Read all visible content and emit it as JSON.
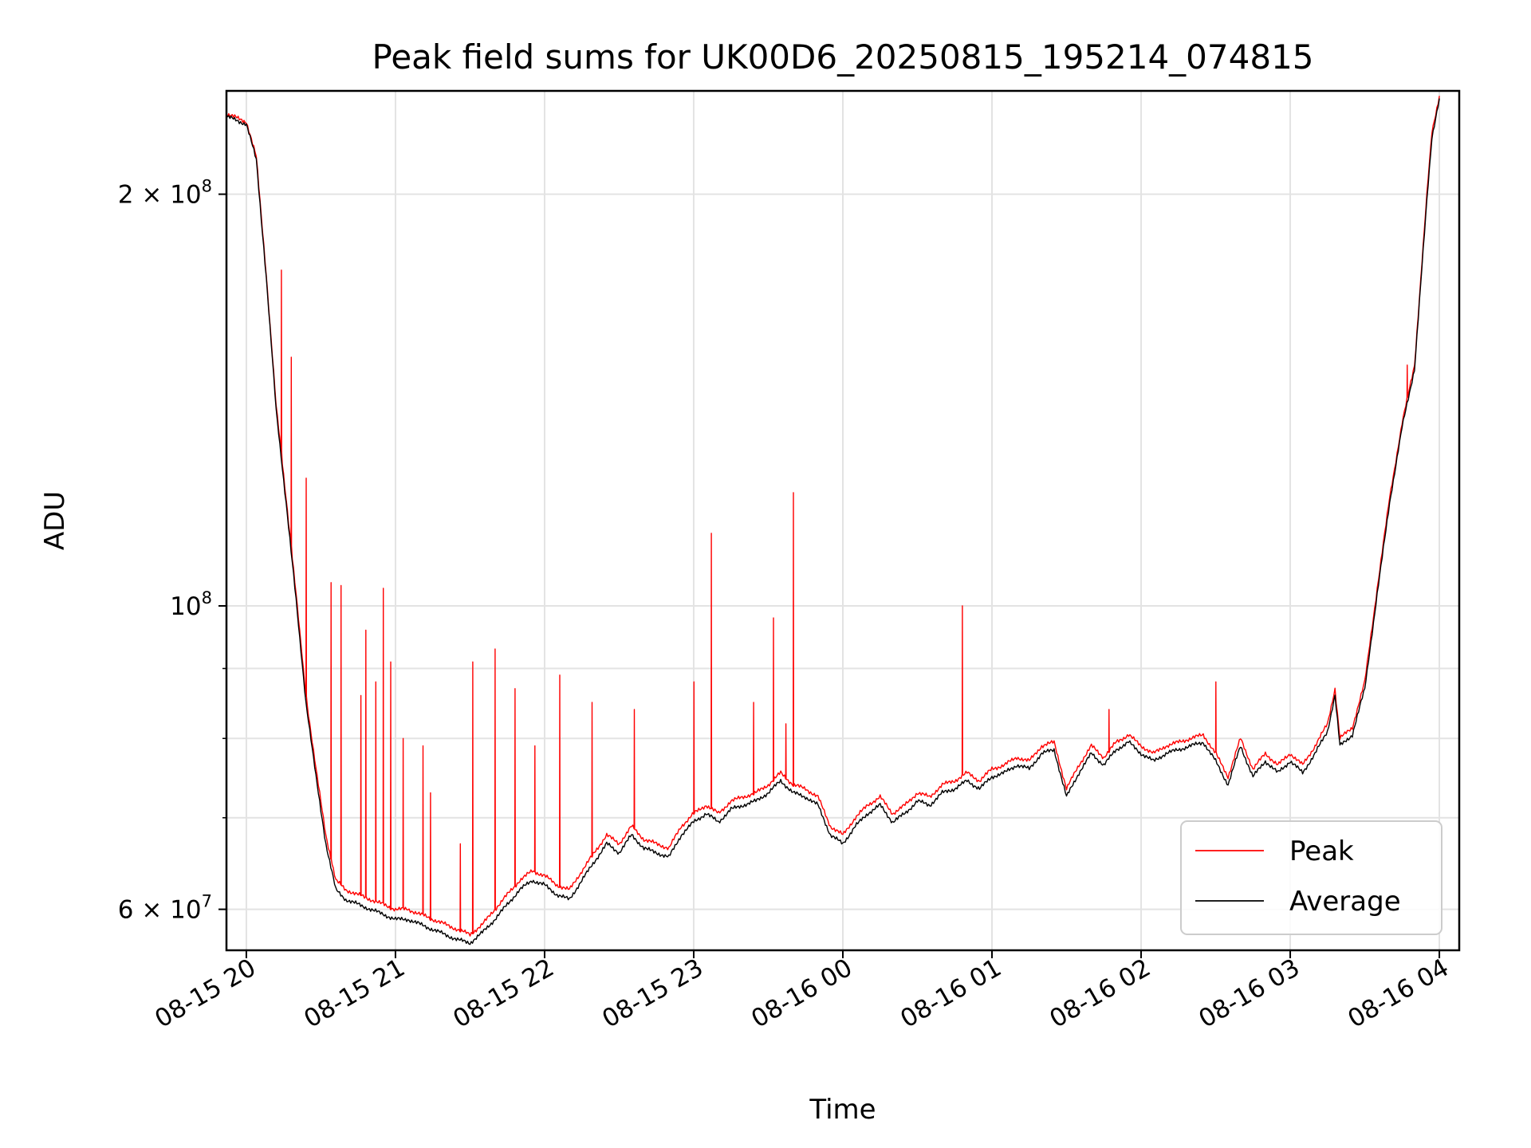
{
  "chart_data": {
    "type": "line",
    "title": "Peak field sums for UK00D6_20250815_195214_074815",
    "xlabel": "Time",
    "ylabel": "ADU",
    "y_scale": "log",
    "ylim": [
      56000000,
      238000000
    ],
    "xlim": [
      "2025-08-15 19:52",
      "2025-08-16 04:08"
    ],
    "grid": true,
    "legend_position": "lower right",
    "x_ticks": [
      "2025-08-15 20:00",
      "2025-08-15 21:00",
      "2025-08-15 22:00",
      "2025-08-15 23:00",
      "2025-08-16 00:00",
      "2025-08-16 01:00",
      "2025-08-16 02:00",
      "2025-08-16 03:00",
      "2025-08-16 04:00"
    ],
    "x_tick_labels": [
      "08-15 20",
      "08-15 21",
      "08-15 22",
      "08-15 23",
      "08-16 00",
      "08-16 01",
      "08-16 02",
      "08-16 03",
      "08-16 04"
    ],
    "y_major_ticks": [
      {
        "value": 60000000,
        "mantissa": "6",
        "base": "10",
        "exponent": "7"
      },
      {
        "value": 100000000,
        "mantissa": "",
        "base": "10",
        "exponent": "8"
      },
      {
        "value": 200000000,
        "mantissa": "2",
        "base": "10",
        "exponent": "8"
      }
    ],
    "y_minor_gridlines": [
      70000000,
      80000000,
      90000000
    ],
    "series": [
      {
        "name": "Peak",
        "color": "#ff0000",
        "values": [
          [
            "2025-08-15 19:52",
            229000000
          ],
          [
            "2025-08-15 20:00",
            226000000
          ],
          [
            "2025-08-15 20:04",
            213000000
          ],
          [
            "2025-08-15 20:08",
            175000000
          ],
          [
            "2025-08-15 20:12",
            140000000
          ],
          [
            "2025-08-15 20:16",
            120000000
          ],
          [
            "2025-08-15 20:20",
            102000000
          ],
          [
            "2025-08-15 20:24",
            86000000
          ],
          [
            "2025-08-15 20:28",
            76000000
          ],
          [
            "2025-08-15 20:32",
            68000000
          ],
          [
            "2025-08-15 20:36",
            63000000
          ],
          [
            "2025-08-15 20:40",
            62000000
          ],
          [
            "2025-08-15 20:45",
            61500000
          ],
          [
            "2025-08-15 20:50",
            61000000
          ],
          [
            "2025-08-15 20:55",
            60500000
          ],
          [
            "2025-08-15 21:00",
            60000000
          ],
          [
            "2025-08-15 21:05",
            60000000
          ],
          [
            "2025-08-15 21:10",
            59500000
          ],
          [
            "2025-08-15 21:15",
            59000000
          ],
          [
            "2025-08-15 21:20",
            58500000
          ],
          [
            "2025-08-15 21:25",
            58000000
          ],
          [
            "2025-08-15 21:30",
            57500000
          ],
          [
            "2025-08-15 21:35",
            58500000
          ],
          [
            "2025-08-15 21:40",
            60000000
          ],
          [
            "2025-08-15 21:45",
            61500000
          ],
          [
            "2025-08-15 21:50",
            63000000
          ],
          [
            "2025-08-15 21:55",
            64000000
          ],
          [
            "2025-08-15 22:00",
            63500000
          ],
          [
            "2025-08-15 22:05",
            62500000
          ],
          [
            "2025-08-15 22:10",
            62000000
          ],
          [
            "2025-08-15 22:15",
            64000000
          ],
          [
            "2025-08-15 22:20",
            66000000
          ],
          [
            "2025-08-15 22:25",
            68000000
          ],
          [
            "2025-08-15 22:30",
            67000000
          ],
          [
            "2025-08-15 22:35",
            69000000
          ],
          [
            "2025-08-15 22:40",
            67500000
          ],
          [
            "2025-08-15 22:45",
            67000000
          ],
          [
            "2025-08-15 22:50",
            66500000
          ],
          [
            "2025-08-15 22:55",
            69000000
          ],
          [
            "2025-08-15 23:00",
            70500000
          ],
          [
            "2025-08-15 23:05",
            71500000
          ],
          [
            "2025-08-15 23:10",
            70500000
          ],
          [
            "2025-08-15 23:15",
            72000000
          ],
          [
            "2025-08-15 23:20",
            72500000
          ],
          [
            "2025-08-15 23:25",
            73000000
          ],
          [
            "2025-08-15 23:30",
            74000000
          ],
          [
            "2025-08-15 23:35",
            75500000
          ],
          [
            "2025-08-15 23:40",
            74000000
          ],
          [
            "2025-08-15 23:45",
            73500000
          ],
          [
            "2025-08-15 23:50",
            72500000
          ],
          [
            "2025-08-15 23:55",
            69000000
          ],
          [
            "2025-08-16 00:00",
            68000000
          ],
          [
            "2025-08-16 00:05",
            70000000
          ],
          [
            "2025-08-16 00:10",
            71500000
          ],
          [
            "2025-08-16 00:15",
            72500000
          ],
          [
            "2025-08-16 00:20",
            70500000
          ],
          [
            "2025-08-16 00:25",
            71500000
          ],
          [
            "2025-08-16 00:30",
            73000000
          ],
          [
            "2025-08-16 00:35",
            72500000
          ],
          [
            "2025-08-16 00:40",
            74000000
          ],
          [
            "2025-08-16 00:45",
            74500000
          ],
          [
            "2025-08-16 00:50",
            75500000
          ],
          [
            "2025-08-16 00:55",
            74500000
          ],
          [
            "2025-08-16 01:00",
            76000000
          ],
          [
            "2025-08-16 01:05",
            76500000
          ],
          [
            "2025-08-16 01:10",
            77500000
          ],
          [
            "2025-08-16 01:15",
            77000000
          ],
          [
            "2025-08-16 01:20",
            79000000
          ],
          [
            "2025-08-16 01:25",
            79500000
          ],
          [
            "2025-08-16 01:30",
            73500000
          ],
          [
            "2025-08-16 01:35",
            76500000
          ],
          [
            "2025-08-16 01:40",
            79000000
          ],
          [
            "2025-08-16 01:45",
            77500000
          ],
          [
            "2025-08-16 01:50",
            79500000
          ],
          [
            "2025-08-16 01:55",
            80500000
          ],
          [
            "2025-08-16 02:00",
            79000000
          ],
          [
            "2025-08-16 02:05",
            78000000
          ],
          [
            "2025-08-16 02:10",
            79000000
          ],
          [
            "2025-08-16 02:15",
            79500000
          ],
          [
            "2025-08-16 02:20",
            80000000
          ],
          [
            "2025-08-16 02:25",
            80500000
          ],
          [
            "2025-08-16 02:30",
            78000000
          ],
          [
            "2025-08-16 02:35",
            75000000
          ],
          [
            "2025-08-16 02:40",
            80000000
          ],
          [
            "2025-08-16 02:45",
            76000000
          ],
          [
            "2025-08-16 02:50",
            78000000
          ],
          [
            "2025-08-16 02:55",
            76500000
          ],
          [
            "2025-08-16 03:00",
            78000000
          ],
          [
            "2025-08-16 03:05",
            76500000
          ],
          [
            "2025-08-16 03:10",
            79000000
          ],
          [
            "2025-08-16 03:15",
            82000000
          ],
          [
            "2025-08-16 03:18",
            87000000
          ],
          [
            "2025-08-16 03:20",
            80000000
          ],
          [
            "2025-08-16 03:25",
            81500000
          ],
          [
            "2025-08-16 03:30",
            88000000
          ],
          [
            "2025-08-16 03:35",
            103000000
          ],
          [
            "2025-08-16 03:40",
            120000000
          ],
          [
            "2025-08-16 03:45",
            136000000
          ],
          [
            "2025-08-16 03:50",
            150000000
          ],
          [
            "2025-08-16 03:55",
            200000000
          ],
          [
            "2025-08-16 03:57",
            222000000
          ],
          [
            "2025-08-16 04:00",
            236000000
          ]
        ],
        "spikes": [
          [
            "2025-08-15 20:14",
            176000000
          ],
          [
            "2025-08-15 20:18",
            152000000
          ],
          [
            "2025-08-15 20:24",
            124000000
          ],
          [
            "2025-08-15 20:34",
            104000000
          ],
          [
            "2025-08-15 20:38",
            103500000
          ],
          [
            "2025-08-15 20:46",
            86000000
          ],
          [
            "2025-08-15 20:48",
            96000000
          ],
          [
            "2025-08-15 20:52",
            88000000
          ],
          [
            "2025-08-15 20:55",
            103000000
          ],
          [
            "2025-08-15 20:58",
            91000000
          ],
          [
            "2025-08-15 21:03",
            80000000
          ],
          [
            "2025-08-15 21:11",
            79000000
          ],
          [
            "2025-08-15 21:14",
            73000000
          ],
          [
            "2025-08-15 21:26",
            67000000
          ],
          [
            "2025-08-15 21:31",
            91000000
          ],
          [
            "2025-08-15 21:40",
            93000000
          ],
          [
            "2025-08-15 21:48",
            87000000
          ],
          [
            "2025-08-15 21:56",
            79000000
          ],
          [
            "2025-08-15 22:06",
            89000000
          ],
          [
            "2025-08-15 22:19",
            85000000
          ],
          [
            "2025-08-15 22:36",
            84000000
          ],
          [
            "2025-08-15 23:00",
            88000000
          ],
          [
            "2025-08-15 23:07",
            113000000
          ],
          [
            "2025-08-15 23:24",
            85000000
          ],
          [
            "2025-08-15 23:32",
            98000000
          ],
          [
            "2025-08-15 23:37",
            82000000
          ],
          [
            "2025-08-15 23:40",
            121000000
          ],
          [
            "2025-08-16 00:48",
            100000000
          ],
          [
            "2025-08-16 01:47",
            84000000
          ],
          [
            "2025-08-16 02:30",
            88000000
          ],
          [
            "2025-08-16 03:47",
            150000000
          ]
        ]
      },
      {
        "name": "Average",
        "color": "#000000",
        "values": [
          [
            "2025-08-15 19:52",
            228000000
          ],
          [
            "2025-08-15 20:00",
            225000000
          ],
          [
            "2025-08-15 20:04",
            212000000
          ],
          [
            "2025-08-15 20:08",
            174000000
          ],
          [
            "2025-08-15 20:12",
            139000000
          ],
          [
            "2025-08-15 20:16",
            119000000
          ],
          [
            "2025-08-15 20:20",
            101000000
          ],
          [
            "2025-08-15 20:24",
            85000000
          ],
          [
            "2025-08-15 20:28",
            75000000
          ],
          [
            "2025-08-15 20:32",
            67000000
          ],
          [
            "2025-08-15 20:36",
            62000000
          ],
          [
            "2025-08-15 20:40",
            61000000
          ],
          [
            "2025-08-15 20:45",
            60500000
          ],
          [
            "2025-08-15 20:50",
            60000000
          ],
          [
            "2025-08-15 20:55",
            59500000
          ],
          [
            "2025-08-15 21:00",
            59000000
          ],
          [
            "2025-08-15 21:05",
            59000000
          ],
          [
            "2025-08-15 21:10",
            58500000
          ],
          [
            "2025-08-15 21:15",
            58000000
          ],
          [
            "2025-08-15 21:20",
            57500000
          ],
          [
            "2025-08-15 21:25",
            57000000
          ],
          [
            "2025-08-15 21:30",
            56700000
          ],
          [
            "2025-08-15 21:35",
            57700000
          ],
          [
            "2025-08-15 21:40",
            59000000
          ],
          [
            "2025-08-15 21:45",
            60500000
          ],
          [
            "2025-08-15 21:50",
            62000000
          ],
          [
            "2025-08-15 21:55",
            63000000
          ],
          [
            "2025-08-15 22:00",
            62500000
          ],
          [
            "2025-08-15 22:05",
            61500000
          ],
          [
            "2025-08-15 22:10",
            61000000
          ],
          [
            "2025-08-15 22:15",
            63000000
          ],
          [
            "2025-08-15 22:20",
            65000000
          ],
          [
            "2025-08-15 22:25",
            67000000
          ],
          [
            "2025-08-15 22:30",
            66000000
          ],
          [
            "2025-08-15 22:35",
            68000000
          ],
          [
            "2025-08-15 22:40",
            66500000
          ],
          [
            "2025-08-15 22:45",
            66000000
          ],
          [
            "2025-08-15 22:50",
            65500000
          ],
          [
            "2025-08-15 22:55",
            68000000
          ],
          [
            "2025-08-15 23:00",
            69500000
          ],
          [
            "2025-08-15 23:05",
            70500000
          ],
          [
            "2025-08-15 23:10",
            69500000
          ],
          [
            "2025-08-15 23:15",
            71000000
          ],
          [
            "2025-08-15 23:20",
            71500000
          ],
          [
            "2025-08-15 23:25",
            72000000
          ],
          [
            "2025-08-15 23:30",
            73000000
          ],
          [
            "2025-08-15 23:35",
            74500000
          ],
          [
            "2025-08-15 23:40",
            73000000
          ],
          [
            "2025-08-15 23:45",
            72500000
          ],
          [
            "2025-08-15 23:50",
            71500000
          ],
          [
            "2025-08-15 23:55",
            68000000
          ],
          [
            "2025-08-16 00:00",
            67000000
          ],
          [
            "2025-08-16 00:05",
            69000000
          ],
          [
            "2025-08-16 00:10",
            70500000
          ],
          [
            "2025-08-16 00:15",
            71500000
          ],
          [
            "2025-08-16 00:20",
            69500000
          ],
          [
            "2025-08-16 00:25",
            70500000
          ],
          [
            "2025-08-16 00:30",
            72000000
          ],
          [
            "2025-08-16 00:35",
            71500000
          ],
          [
            "2025-08-16 00:40",
            73000000
          ],
          [
            "2025-08-16 00:45",
            73500000
          ],
          [
            "2025-08-16 00:50",
            74500000
          ],
          [
            "2025-08-16 00:55",
            73500000
          ],
          [
            "2025-08-16 01:00",
            75000000
          ],
          [
            "2025-08-16 01:05",
            75500000
          ],
          [
            "2025-08-16 01:10",
            76500000
          ],
          [
            "2025-08-16 01:15",
            76000000
          ],
          [
            "2025-08-16 01:20",
            78000000
          ],
          [
            "2025-08-16 01:25",
            78500000
          ],
          [
            "2025-08-16 01:30",
            72500000
          ],
          [
            "2025-08-16 01:35",
            75500000
          ],
          [
            "2025-08-16 01:40",
            78000000
          ],
          [
            "2025-08-16 01:45",
            76500000
          ],
          [
            "2025-08-16 01:50",
            78500000
          ],
          [
            "2025-08-16 01:55",
            79500000
          ],
          [
            "2025-08-16 02:00",
            78000000
          ],
          [
            "2025-08-16 02:05",
            77000000
          ],
          [
            "2025-08-16 02:10",
            78000000
          ],
          [
            "2025-08-16 02:15",
            78500000
          ],
          [
            "2025-08-16 02:20",
            79000000
          ],
          [
            "2025-08-16 02:25",
            79500000
          ],
          [
            "2025-08-16 02:30",
            77000000
          ],
          [
            "2025-08-16 02:35",
            74000000
          ],
          [
            "2025-08-16 02:40",
            79000000
          ],
          [
            "2025-08-16 02:45",
            75000000
          ],
          [
            "2025-08-16 02:50",
            77000000
          ],
          [
            "2025-08-16 02:55",
            75500000
          ],
          [
            "2025-08-16 03:00",
            77000000
          ],
          [
            "2025-08-16 03:05",
            75500000
          ],
          [
            "2025-08-16 03:10",
            78000000
          ],
          [
            "2025-08-16 03:15",
            81000000
          ],
          [
            "2025-08-16 03:18",
            86000000
          ],
          [
            "2025-08-16 03:20",
            79000000
          ],
          [
            "2025-08-16 03:25",
            80500000
          ],
          [
            "2025-08-16 03:30",
            87000000
          ],
          [
            "2025-08-16 03:35",
            102000000
          ],
          [
            "2025-08-16 03:40",
            119000000
          ],
          [
            "2025-08-16 03:45",
            135000000
          ],
          [
            "2025-08-16 03:50",
            149000000
          ],
          [
            "2025-08-16 03:55",
            198000000
          ],
          [
            "2025-08-16 03:57",
            220000000
          ],
          [
            "2025-08-16 04:00",
            235000000
          ]
        ]
      }
    ]
  }
}
